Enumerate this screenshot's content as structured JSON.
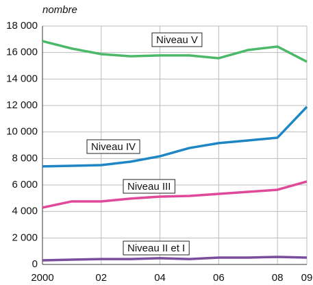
{
  "chart_data": {
    "type": "line",
    "y_label": "nombre",
    "x": [
      2000,
      2001,
      2002,
      2003,
      2004,
      2005,
      2006,
      2007,
      2008,
      2009
    ],
    "xlim": [
      2000,
      2009
    ],
    "xticks": [
      2000,
      {
        "value": 2002,
        "label": "02"
      },
      {
        "value": 2004,
        "label": "04"
      },
      {
        "value": 2006,
        "label": "06"
      },
      {
        "value": 2008,
        "label": "08"
      },
      {
        "value": 2009,
        "label": "09"
      }
    ],
    "ylim": [
      0,
      18000
    ],
    "yticks": [
      0,
      {
        "value": 2000,
        "label": "2 000"
      },
      {
        "value": 4000,
        "label": "4 000"
      },
      {
        "value": 6000,
        "label": "6 000"
      },
      {
        "value": 8000,
        "label": "8 000"
      },
      {
        "value": 10000,
        "label": "10 000"
      },
      {
        "value": 12000,
        "label": "12 000"
      },
      {
        "value": 14000,
        "label": "14 000"
      },
      {
        "value": 16000,
        "label": "16 000"
      },
      {
        "value": 18000,
        "label": "18 000"
      }
    ],
    "grid": true,
    "series": [
      {
        "name": "Niveau V",
        "color": "#4cb96a",
        "values": [
          16860,
          16300,
          15880,
          15720,
          15780,
          15780,
          15570,
          16190,
          16450,
          15310
        ]
      },
      {
        "name": "Niveau IV",
        "color": "#1f86c6",
        "values": [
          7400,
          7450,
          7500,
          7760,
          8170,
          8790,
          9160,
          9360,
          9570,
          11900
        ]
      },
      {
        "name": "Niveau III",
        "color": "#e0489a",
        "values": [
          4290,
          4760,
          4760,
          4970,
          5120,
          5170,
          5330,
          5480,
          5640,
          6260
        ]
      },
      {
        "name": "Niveau II et I",
        "color": "#7a4d9d",
        "values": [
          310,
          360,
          410,
          410,
          470,
          410,
          520,
          520,
          570,
          520
        ]
      }
    ]
  }
}
